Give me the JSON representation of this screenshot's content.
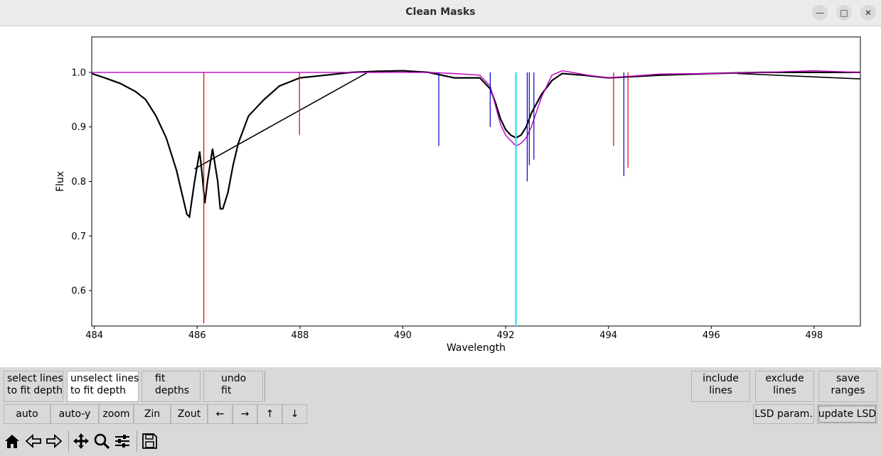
{
  "window": {
    "title": "Clean Masks"
  },
  "chart_data": {
    "type": "line",
    "xlabel": "Wavelength",
    "ylabel": "Flux",
    "xlim": [
      483.95,
      498.9
    ],
    "ylim": [
      0.535,
      1.065
    ],
    "xticks": [
      484,
      486,
      488,
      490,
      492,
      494,
      496,
      498
    ],
    "yticks": [
      0.6,
      0.7,
      0.8,
      0.9,
      1.0
    ],
    "grid": false,
    "series": [
      {
        "name": "",
        "color": "#000000",
        "x": [
          483.95,
          484.2,
          484.5,
          484.8,
          485.0,
          485.2,
          485.4,
          485.6,
          485.7,
          485.8,
          485.85,
          485.95,
          486.05,
          486.1,
          486.15,
          486.2,
          486.3,
          486.4,
          486.45,
          486.5,
          486.6,
          486.7,
          486.8,
          487.0,
          487.3,
          487.6,
          488.0,
          488.5,
          489.0,
          489.5,
          490.0,
          490.5,
          491.0,
          491.5,
          491.7,
          491.8,
          491.9,
          492.0,
          492.1,
          492.2,
          492.3,
          492.4,
          492.5,
          492.7,
          492.9,
          493.1,
          493.5,
          494.0,
          495.0,
          496.0,
          497.0,
          498.0,
          498.9
        ],
        "y": [
          0.998,
          0.99,
          0.98,
          0.965,
          0.95,
          0.92,
          0.88,
          0.82,
          0.78,
          0.74,
          0.735,
          0.8,
          0.855,
          0.81,
          0.76,
          0.8,
          0.86,
          0.8,
          0.75,
          0.75,
          0.78,
          0.83,
          0.87,
          0.92,
          0.95,
          0.975,
          0.99,
          0.995,
          1.0,
          1.002,
          1.003,
          1.0,
          0.99,
          0.99,
          0.97,
          0.945,
          0.915,
          0.895,
          0.885,
          0.88,
          0.885,
          0.9,
          0.925,
          0.96,
          0.985,
          0.998,
          0.995,
          0.99,
          0.995,
          0.998,
          1.0,
          1.0,
          1.0
        ]
      },
      {
        "name": "",
        "color": "#000000",
        "x": [
          485.95,
          489.3
        ],
        "y": [
          0.823,
          0.999
        ]
      },
      {
        "name": "",
        "color": "#000000",
        "x": [
          496.5,
          498.9
        ],
        "y": [
          0.998,
          0.988
        ]
      },
      {
        "name": "",
        "color": "#c000c0",
        "x": [
          483.95,
          490.5,
          491.0,
          491.5,
          491.7,
          491.8,
          491.9,
          492.0,
          492.1,
          492.2,
          492.3,
          492.4,
          492.5,
          492.7,
          492.9,
          493.1,
          493.3,
          493.6,
          494.0,
          495.0,
          496.0,
          497.0,
          498.0,
          498.9
        ],
        "y": [
          1.0,
          1.0,
          0.998,
          0.995,
          0.975,
          0.94,
          0.905,
          0.885,
          0.875,
          0.865,
          0.87,
          0.88,
          0.9,
          0.955,
          0.995,
          1.003,
          1.0,
          0.995,
          0.99,
          0.997,
          0.998,
          1.0,
          1.003,
          1.0
        ]
      }
    ],
    "red_lines": [
      {
        "x": 486.13,
        "depth": 0.46
      },
      {
        "x": 487.99,
        "depth": 0.115
      },
      {
        "x": 494.1,
        "depth": 0.135
      },
      {
        "x": 494.38,
        "depth": 0.175
      }
    ],
    "blue_lines": [
      {
        "x": 490.7,
        "depth": 0.135
      },
      {
        "x": 491.7,
        "depth": 0.1
      },
      {
        "x": 492.42,
        "depth": 0.2
      },
      {
        "x": 492.46,
        "depth": 0.17
      },
      {
        "x": 492.55,
        "depth": 0.16
      },
      {
        "x": 494.3,
        "depth": 0.19
      }
    ],
    "cyan_line": {
      "x": 492.2
    },
    "colors": {
      "red": "#e00000",
      "blue": "#0000cc",
      "cyan": "#40e0f0",
      "magenta": "#c000c0",
      "black": "#000000"
    }
  },
  "controls": {
    "select_fit": [
      "select lines",
      "to fit depth"
    ],
    "unselect_fit": [
      "unselect lines",
      "to fit depth"
    ],
    "fit_depths": [
      "fit",
      "depths"
    ],
    "undo_fit": [
      "undo",
      "fit"
    ],
    "include_lines": [
      "include",
      "lines"
    ],
    "exclude_lines": [
      "exclude",
      "lines"
    ],
    "save_ranges": [
      "save",
      "ranges"
    ],
    "auto": "auto",
    "auto_y": "auto-y",
    "zoom": "zoom",
    "zin": "Zin",
    "zout": "Zout",
    "left": "←",
    "right": "→",
    "up": "↑",
    "down": "↓",
    "lsd_param": "LSD param.",
    "update_lsd": "update LSD"
  },
  "toolbar": {
    "icons": [
      "home-icon",
      "back-icon",
      "forward-icon",
      "pan-icon",
      "zoom-icon",
      "configure-icon",
      "save-icon"
    ]
  }
}
